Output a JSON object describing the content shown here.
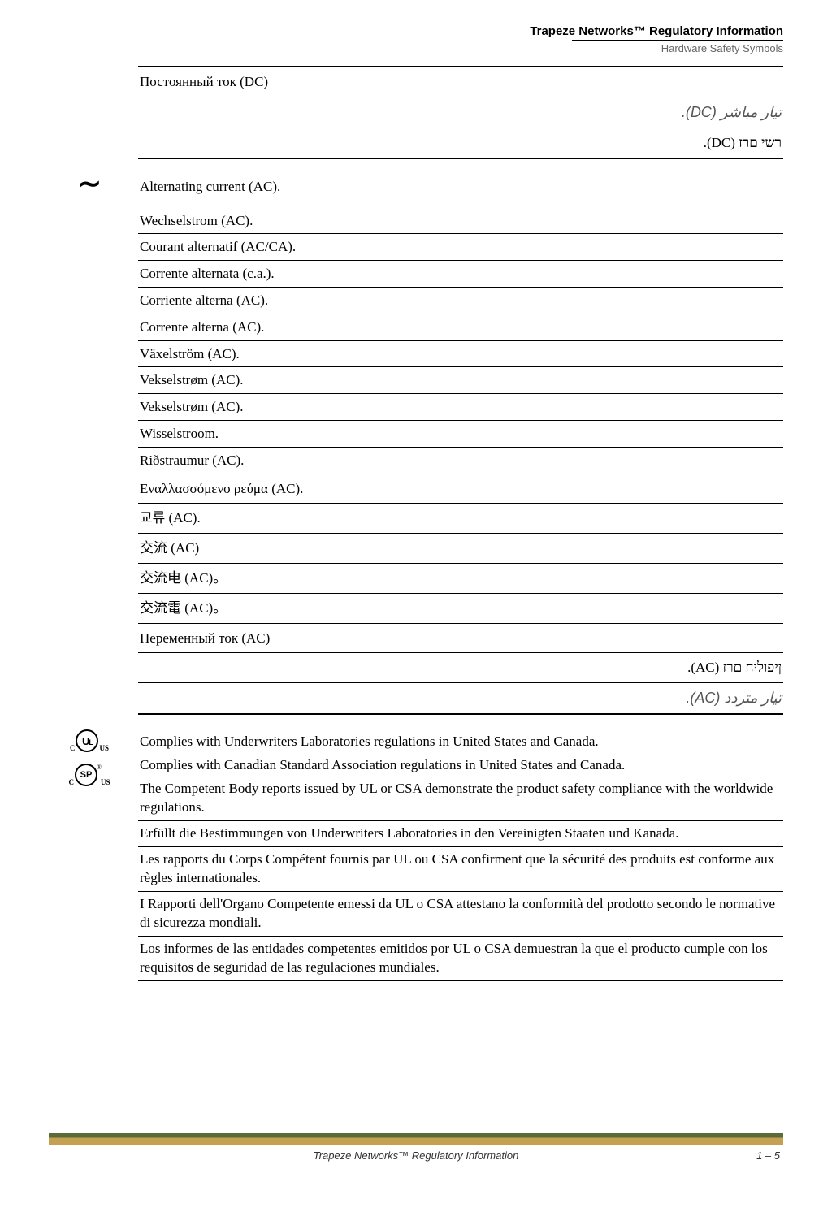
{
  "header": {
    "title": "Trapeze Networks™ Regulatory Information",
    "subtitle": "Hardware Safety Symbols"
  },
  "dc_section": {
    "rows": [
      {
        "text": "Постоянный ток (DC)",
        "rtl": false,
        "style": "first-visible row-spaced"
      },
      {
        "text": "تيار مباشر (DC).",
        "rtl": true,
        "style": "arabic-img row-spaced"
      },
      {
        "text": "רשי םרז (DC).",
        "rtl": true,
        "style": "row-bottom-thick row-spaced"
      }
    ]
  },
  "ac_section": {
    "heading": "Alternating current (AC).",
    "rows": [
      {
        "text": "Wechselstrom (AC)."
      },
      {
        "text": "Courant alternatif (AC/CA)."
      },
      {
        "text": "Corrente alternata (c.a.)."
      },
      {
        "text": "Corriente alterna (AC)."
      },
      {
        "text": "Corrente alterna (AC)."
      },
      {
        "text": "Växelström (AC)."
      },
      {
        "text": "Vekselstrøm (AC)."
      },
      {
        "text": "Vekselstrøm (AC)."
      },
      {
        "text": "Wisselstroom."
      },
      {
        "text": "Riðstraumur (AC)."
      },
      {
        "text": "Εναλλασσόμενο ρεύμα (AC).",
        "style": "row-spaced"
      },
      {
        "text": "교류 (AC).",
        "style": "row-spaced"
      },
      {
        "text": "交流 (AC)",
        "style": "row-spaced"
      },
      {
        "text": "交流电 (AC)。",
        "style": "row-spaced"
      },
      {
        "text": "交流電 (AC)。",
        "style": "row-spaced"
      },
      {
        "text": "Переменный ток (AC)",
        "style": "row-spaced"
      },
      {
        "text": "ןיפוליח םרז (AC).",
        "rtl": true,
        "style": "row-spaced"
      },
      {
        "text": "تيار متردد (AC).",
        "rtl": true,
        "style": "arabic-img row-bottom-thick row-spaced"
      }
    ]
  },
  "compliance_section": {
    "rows": [
      {
        "text": "Complies with Underwriters Laboratories regulations in United States and Canada.",
        "style": "compliance-first"
      },
      {
        "text": "Complies with Canadian Standard Association regulations in United States and Canada.",
        "style": "compliance-first"
      },
      {
        "text": "The Competent Body reports issued by UL or CSA demonstrate the product safety compliance with the worldwide regulations."
      },
      {
        "text": "Erfüllt die Bestimmungen von Underwriters Laboratories in den Vereinigten Staaten und Kanada."
      },
      {
        "text": "Les rapports du Corps Compétent fournis par UL ou CSA confirment que la sécurité des produits est conforme aux règles internationales."
      },
      {
        "text": "I Rapporti dell'Organo Competente emessi da UL o CSA attestano la conformità del prodotto secondo le normative di sicurezza mondiali."
      },
      {
        "text": "Los informes de las entidades competentes emitidos por UL o CSA demuestran la que el producto cumple con los requisitos de seguridad de las regulaciones mundiales."
      }
    ]
  },
  "footer": {
    "center": "Trapeze Networks™ Regulatory Information",
    "right": "1 – 5"
  }
}
